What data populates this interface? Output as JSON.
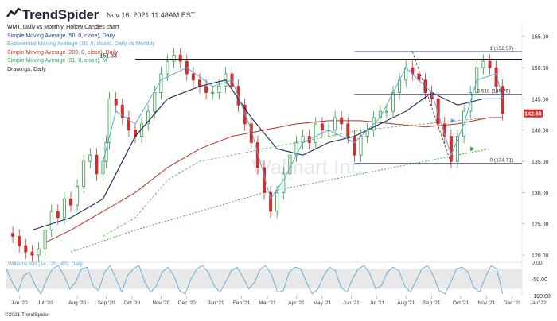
{
  "header": {
    "brand": "TrendSpider",
    "timestamp": "Nov 16, 2021 11:48AM EST"
  },
  "legend": {
    "title": "WMT, Daily vs Monthly, Hollow Candles chart",
    "items": [
      {
        "label": "Simple Moving Average (50, 0, close), Daily",
        "color": "#1e3a8a"
      },
      {
        "label": "Exponential Moving Average (10, 0, close), Daily vs Monthly",
        "color": "#5aa9d6"
      },
      {
        "label": "Simple Moving Average (200, 0, close), Daily",
        "color": "#c0392b"
      },
      {
        "label": "Simple Moving Average (21, 0, close), M",
        "color": "#27ae60"
      },
      {
        "label": "Drawings, Daily",
        "color": "#222222"
      }
    ]
  },
  "footer": "©2021 TrendSpider",
  "watermark": "Walmart Inc.",
  "colors": {
    "up": "#2e9e3e",
    "down": "#d12e2e",
    "sma50": "#1e2a55",
    "ema10": "#5aa9d6",
    "sma200": "#b83227",
    "sma21m": "#2e9e3e",
    "fib": "#3b4a8c"
  },
  "chart_data": {
    "type": "candlestick",
    "ylim": [
      119.5,
      157
    ],
    "yticks": [
      120,
      125,
      130,
      135,
      140,
      145,
      150,
      155
    ],
    "x_domain": [
      0,
      160
    ],
    "x_ticks": [
      {
        "label": "Jun '20",
        "x": 4
      },
      {
        "label": "Jul '20",
        "x": 12
      },
      {
        "label": "Aug '20",
        "x": 22
      },
      {
        "label": "Sep '20",
        "x": 31
      },
      {
        "label": "Oct '20",
        "x": 39
      },
      {
        "label": "Nov '20",
        "x": 48
      },
      {
        "label": "Dec '20",
        "x": 56
      },
      {
        "label": "Jan '21",
        "x": 65
      },
      {
        "label": "Feb '21",
        "x": 73
      },
      {
        "label": "Mar '21",
        "x": 81
      },
      {
        "label": "Apr '21",
        "x": 90
      },
      {
        "label": "May '21",
        "x": 98
      },
      {
        "label": "Jun '21",
        "x": 107
      },
      {
        "label": "Jul '21",
        "x": 115
      },
      {
        "label": "Aug '21",
        "x": 124
      },
      {
        "label": "Sep '21",
        "x": 132
      },
      {
        "label": "Oct '21",
        "x": 141
      },
      {
        "label": "Nov '21",
        "x": 149
      },
      {
        "label": "Dec '21",
        "x": 157
      },
      {
        "label": "Jan '22",
        "x": 165
      }
    ],
    "last_price": "142.66",
    "ohlc_close": [
      [
        0,
        123.5
      ],
      [
        2,
        123
      ],
      [
        4,
        121.5
      ],
      [
        6,
        120.5
      ],
      [
        8,
        120
      ],
      [
        10,
        121
      ],
      [
        12,
        124
      ],
      [
        14,
        127
      ],
      [
        16,
        126
      ],
      [
        18,
        129
      ],
      [
        20,
        128
      ],
      [
        22,
        131
      ],
      [
        24,
        135
      ],
      [
        26,
        136
      ],
      [
        28,
        133
      ],
      [
        30,
        135
      ],
      [
        31,
        138
      ],
      [
        32,
        145
      ],
      [
        34,
        144
      ],
      [
        36,
        142
      ],
      [
        38,
        140
      ],
      [
        40,
        139
      ],
      [
        42,
        141
      ],
      [
        44,
        143
      ],
      [
        46,
        146
      ],
      [
        48,
        149
      ],
      [
        50,
        151
      ],
      [
        52,
        152
      ],
      [
        54,
        151
      ],
      [
        56,
        149
      ],
      [
        58,
        148
      ],
      [
        60,
        147
      ],
      [
        62,
        146
      ],
      [
        64,
        146
      ],
      [
        66,
        147
      ],
      [
        68,
        149
      ],
      [
        70,
        147
      ],
      [
        72,
        144
      ],
      [
        74,
        141
      ],
      [
        76,
        138
      ],
      [
        78,
        134
      ],
      [
        80,
        130
      ],
      [
        82,
        127
      ],
      [
        84,
        130
      ],
      [
        86,
        133
      ],
      [
        88,
        136
      ],
      [
        90,
        138
      ],
      [
        92,
        139
      ],
      [
        94,
        138
      ],
      [
        96,
        141
      ],
      [
        98,
        140
      ],
      [
        100,
        140
      ],
      [
        102,
        142
      ],
      [
        104,
        141
      ],
      [
        106,
        139
      ],
      [
        108,
        136
      ],
      [
        110,
        139
      ],
      [
        112,
        140
      ],
      [
        114,
        142
      ],
      [
        116,
        143
      ],
      [
        118,
        143
      ],
      [
        120,
        146
      ],
      [
        122,
        148
      ],
      [
        124,
        150
      ],
      [
        126,
        149
      ],
      [
        128,
        148
      ],
      [
        130,
        146
      ],
      [
        132,
        145
      ],
      [
        134,
        141
      ],
      [
        136,
        139
      ],
      [
        138,
        135
      ],
      [
        140,
        139
      ],
      [
        142,
        143
      ],
      [
        144,
        146
      ],
      [
        146,
        150
      ],
      [
        148,
        151
      ],
      [
        150,
        150
      ],
      [
        152,
        147
      ],
      [
        154,
        142.66
      ]
    ],
    "sma50": [
      [
        8,
        124
      ],
      [
        20,
        126
      ],
      [
        30,
        129
      ],
      [
        40,
        139
      ],
      [
        50,
        145
      ],
      [
        60,
        147
      ],
      [
        68,
        148
      ],
      [
        76,
        142
      ],
      [
        84,
        137
      ],
      [
        92,
        136
      ],
      [
        100,
        138
      ],
      [
        108,
        139
      ],
      [
        116,
        141
      ],
      [
        124,
        143
      ],
      [
        132,
        146
      ],
      [
        140,
        144
      ],
      [
        148,
        145
      ],
      [
        154,
        145
      ]
    ],
    "ema10": [
      [
        30,
        135
      ],
      [
        34,
        143
      ],
      [
        40,
        141
      ],
      [
        48,
        148
      ],
      [
        56,
        150
      ],
      [
        64,
        147
      ],
      [
        70,
        148
      ],
      [
        76,
        140
      ],
      [
        82,
        129
      ],
      [
        86,
        132
      ],
      [
        92,
        138
      ],
      [
        100,
        140
      ],
      [
        108,
        138
      ],
      [
        116,
        142
      ],
      [
        124,
        150
      ],
      [
        132,
        146
      ],
      [
        138,
        136
      ],
      [
        142,
        141
      ],
      [
        146,
        148
      ],
      [
        152,
        149
      ],
      [
        154,
        145
      ]
    ],
    "sma200": [
      [
        12,
        122
      ],
      [
        20,
        124
      ],
      [
        30,
        127
      ],
      [
        40,
        130
      ],
      [
        50,
        134
      ],
      [
        60,
        137
      ],
      [
        70,
        139
      ],
      [
        80,
        140
      ],
      [
        90,
        141
      ],
      [
        100,
        141.5
      ],
      [
        110,
        141.5
      ],
      [
        120,
        141
      ],
      [
        130,
        140.5
      ],
      [
        140,
        141
      ],
      [
        150,
        142
      ],
      [
        154,
        142
      ]
    ],
    "sma21m": [
      [
        20,
        120.5
      ],
      [
        40,
        124
      ],
      [
        60,
        127
      ],
      [
        80,
        130
      ],
      [
        100,
        132
      ],
      [
        120,
        134
      ],
      [
        140,
        136
      ],
      [
        150,
        137
      ]
    ],
    "sma10m_dots": [
      [
        30,
        123
      ],
      [
        40,
        126
      ],
      [
        50,
        132
      ],
      [
        60,
        135
      ],
      [
        70,
        136
      ],
      [
        80,
        137
      ],
      [
        90,
        138
      ],
      [
        100,
        139
      ],
      [
        110,
        140
      ],
      [
        120,
        140.5
      ],
      [
        130,
        141
      ],
      [
        140,
        141.5
      ],
      [
        150,
        142
      ]
    ],
    "resistance": {
      "value": 151.33,
      "label": "151.33"
    },
    "fib_levels": [
      {
        "label": "1 (152.57)",
        "value": 152.57
      },
      {
        "label": "0.618 (145.75)",
        "value": 145.75
      },
      {
        "label": "0 (134.71)",
        "value": 134.71
      }
    ],
    "williams_r": {
      "label": "Williams %R (14, -20, -80), Daily",
      "yticks": [
        "0.00",
        "-50.00",
        "-100.00"
      ],
      "values": [
        -20,
        -60,
        -90,
        -40,
        -30,
        -70,
        -95,
        -50,
        -20,
        -10,
        -40,
        -80,
        -60,
        -20,
        -15,
        -70,
        -85,
        -30,
        -10,
        -50,
        -90,
        -40,
        -20,
        -10,
        -60,
        -90,
        -70,
        -30,
        -15,
        -40,
        -85,
        -95,
        -50,
        -20,
        -10,
        -30,
        -70,
        -90,
        -60,
        -25,
        -15,
        -45,
        -80,
        -60,
        -20,
        -10,
        -40,
        -90,
        -85,
        -30,
        -15,
        -20,
        -60,
        -95,
        -80,
        -40,
        -15,
        -25,
        -75,
        -90,
        -50,
        -20,
        -10,
        -35,
        -80,
        -70,
        -30,
        -15,
        -25,
        -70,
        -90,
        -55,
        -20,
        -10,
        -40,
        -85,
        -95,
        -60,
        -20,
        -15,
        -30,
        -75,
        -90,
        -45,
        -10,
        -20,
        -95
      ]
    }
  }
}
